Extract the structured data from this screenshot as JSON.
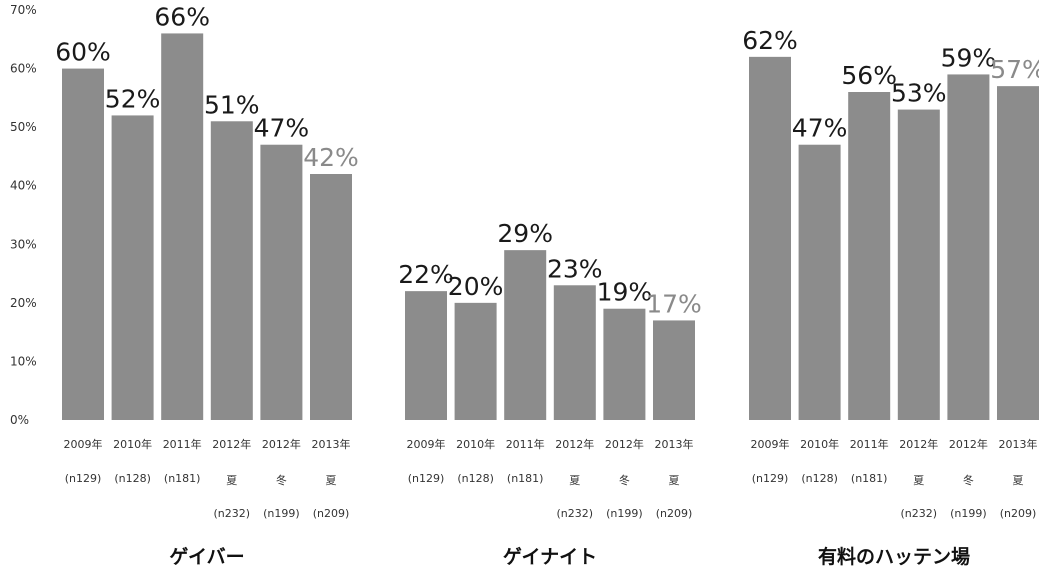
{
  "chart_data": {
    "type": "bar",
    "ylim": [
      0,
      70
    ],
    "yticks": [
      "0%",
      "10%",
      "20%",
      "30%",
      "40%",
      "50%",
      "60%",
      "70%"
    ],
    "grid": false,
    "legend": "none",
    "bar_color": "#8c8c8c",
    "highlight_label_color": "#8a8a8a",
    "categories": [
      {
        "year": "2009年",
        "season": "",
        "n": "(n129)"
      },
      {
        "year": "2010年",
        "season": "",
        "n": "(n128)"
      },
      {
        "year": "2011年",
        "season": "",
        "n": "(n181)"
      },
      {
        "year": "2012年",
        "season": "夏",
        "n": "(n232)"
      },
      {
        "year": "2012年",
        "season": "冬",
        "n": "(n199)"
      },
      {
        "year": "2013年",
        "season": "夏",
        "n": "(n209)"
      }
    ],
    "panels": [
      {
        "title": "ゲイバー",
        "values": [
          60,
          52,
          66,
          51,
          47,
          42
        ],
        "labels": [
          "60%",
          "52%",
          "66%",
          "51%",
          "47%",
          "42%"
        ]
      },
      {
        "title": "ゲイナイト",
        "values": [
          22,
          20,
          29,
          23,
          19,
          17
        ],
        "labels": [
          "22%",
          "20%",
          "29%",
          "23%",
          "19%",
          "17%"
        ]
      },
      {
        "title": "有料のハッテン場",
        "values": [
          62,
          47,
          56,
          53,
          59,
          57
        ],
        "labels": [
          "62%",
          "47%",
          "56%",
          "53%",
          "59%",
          "57%"
        ]
      }
    ]
  }
}
